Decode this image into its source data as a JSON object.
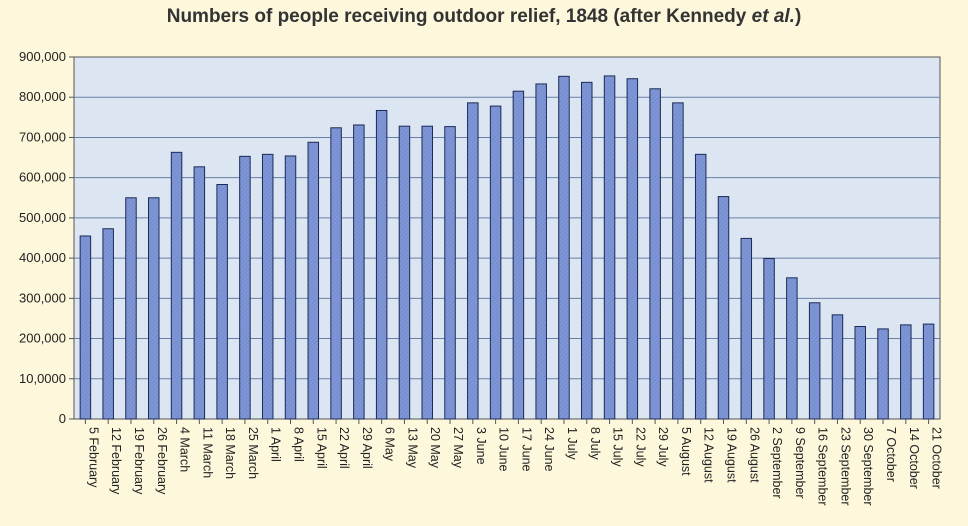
{
  "chart_data": {
    "type": "bar",
    "title": {
      "main": "Numbers of people receiving outdoor relief, 1848 (after Kennedy ",
      "italic": "et al.",
      "end": ")"
    },
    "xlabel": "",
    "ylabel": "",
    "ylim": [
      0,
      900000
    ],
    "yticks": [
      {
        "value": 0,
        "label": "0"
      },
      {
        "value": 100000,
        "label": "10,0000"
      },
      {
        "value": 200000,
        "label": "200,000"
      },
      {
        "value": 300000,
        "label": "300,000"
      },
      {
        "value": 400000,
        "label": "400,000"
      },
      {
        "value": 500000,
        "label": "500,000"
      },
      {
        "value": 600000,
        "label": "600,000"
      },
      {
        "value": 700000,
        "label": "700,000"
      },
      {
        "value": 800000,
        "label": "800,000"
      },
      {
        "value": 900000,
        "label": "900,000"
      }
    ],
    "grid": true,
    "bar_color": "#7f96d6",
    "categories": [
      "5 February",
      "12 February",
      "19 February",
      "26 February",
      "4 March",
      "11 March",
      "18 March",
      "25 March",
      "1 April",
      "8 April",
      "15 April",
      "22 April",
      "29 April",
      "6 May",
      "13 May",
      "20 May",
      "27 May",
      "3 June",
      "10 June",
      "17 June",
      "24 June",
      "1 July",
      "8 July",
      "15 July",
      "22 July",
      "29 July",
      "5 August",
      "12 August",
      "19 August",
      "26 August",
      "2 September",
      "9 September",
      "16 September",
      "23 September",
      "30 September",
      "7 October",
      "14 October",
      "21 October"
    ],
    "values": [
      455000,
      473000,
      550000,
      550000,
      663000,
      627000,
      583000,
      653000,
      658000,
      654000,
      688000,
      724000,
      731000,
      767000,
      728000,
      728000,
      727000,
      786000,
      778000,
      815000,
      833000,
      852000,
      837000,
      853000,
      846000,
      821000,
      786000,
      658000,
      553000,
      449000,
      399000,
      351000,
      289000,
      259000,
      230000,
      224000,
      234000,
      236000
    ]
  }
}
